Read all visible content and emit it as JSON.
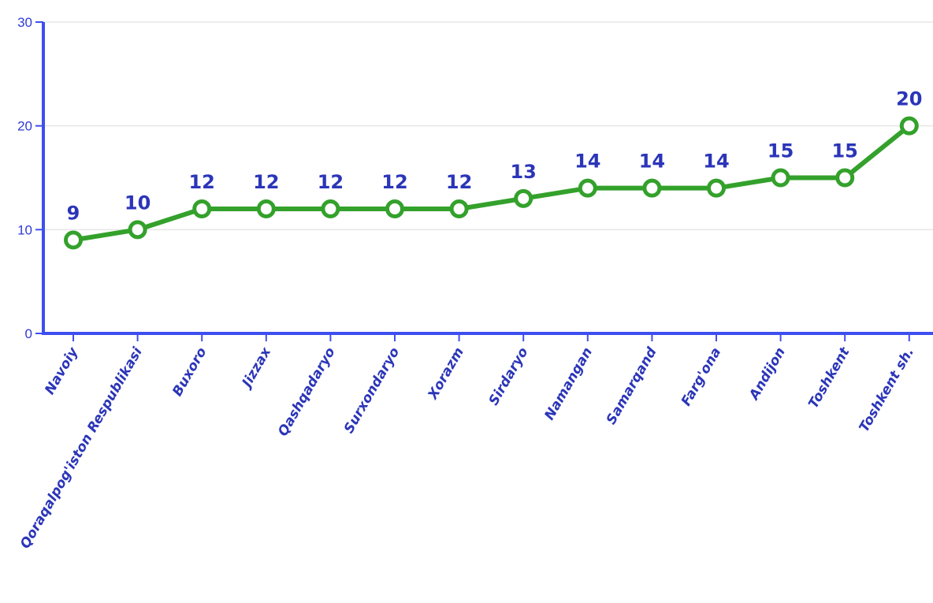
{
  "chart_data": {
    "type": "line",
    "title": "",
    "xlabel": "",
    "ylabel": "",
    "categories": [
      "Navoiy",
      "Qoraqalpog'iston Respublikasi",
      "Buxoro",
      "Jizzax",
      "Qashqadaryo",
      "Surxondaryo",
      "Xorazm",
      "Sirdaryo",
      "Namangan",
      "Samarqand",
      "Farg'ona",
      "Andijon",
      "Toshkent",
      "Toshkent sh."
    ],
    "series": [
      {
        "values": [
          9,
          10,
          12,
          12,
          12,
          12,
          12,
          13,
          14,
          14,
          14,
          15,
          15,
          20
        ]
      }
    ],
    "ylim": [
      0,
      30
    ],
    "yticks": [
      "0",
      "10",
      "20",
      "30"
    ],
    "grid": true,
    "legend": "none",
    "colors": {
      "line": "#33a12b",
      "axis": "#3d4ff0",
      "grid": "#e6e6e6",
      "text": "#2b35b8"
    }
  }
}
